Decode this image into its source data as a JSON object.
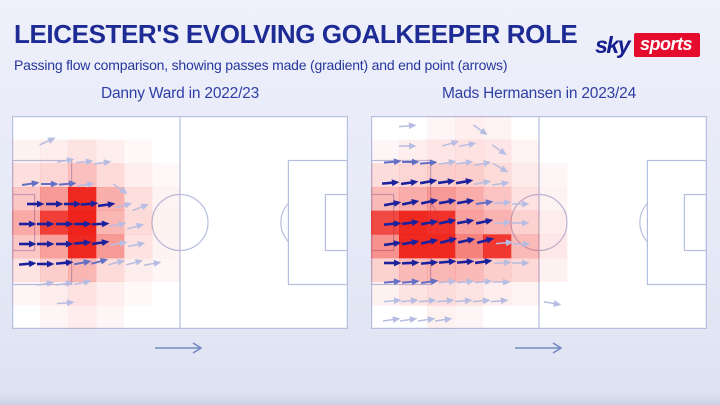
{
  "header": {
    "title": "LEICESTER'S EVOLVING GOALKEEPER ROLE",
    "subtitle": "Passing flow comparison, showing passes made (gradient) and end point (arrows)",
    "brand": {
      "sky": "sky",
      "sports": "sports"
    }
  },
  "colors": {
    "title_navy": "#1e2b94",
    "brand_red": "#e40b2d",
    "brand_navy": "#151e8c",
    "pitch_line": "#b7bfe0",
    "pitch_fill": "#ffffff",
    "heat_red": "238,28,20",
    "arrow_shades": [
      "#b7bde2",
      "#636ec5",
      "#1b219c"
    ],
    "direction_arrow": "#7389bf"
  },
  "chart_data": [
    {
      "type": "heatmap",
      "subtype": "passing-flow-quiver",
      "title": "Danny Ward in 2022/23",
      "direction_of_play": "left-to-right",
      "colormap": "white-to-red (pass volume gradient)",
      "arrow_shade_meaning": {
        "0": "low volume",
        "1": "medium volume",
        "2": "high volume"
      },
      "grid": {
        "cols": 12,
        "rows": 9,
        "values": [
          [
            0,
            0,
            0,
            0,
            0,
            0,
            0,
            0,
            0,
            0,
            0,
            0
          ],
          [
            0.06,
            0.08,
            0.12,
            0.07,
            0.03,
            0,
            0,
            0,
            0,
            0,
            0,
            0
          ],
          [
            0.14,
            0.18,
            0.28,
            0.16,
            0.07,
            0.03,
            0,
            0,
            0,
            0,
            0,
            0
          ],
          [
            0.25,
            0.45,
            0.95,
            0.35,
            0.14,
            0.05,
            0,
            0,
            0,
            0,
            0,
            0
          ],
          [
            0.38,
            0.85,
            0.97,
            0.32,
            0.16,
            0.06,
            0,
            0,
            0,
            0,
            0,
            0
          ],
          [
            0.25,
            0.42,
            0.95,
            0.45,
            0.13,
            0.05,
            0,
            0,
            0,
            0,
            0,
            0
          ],
          [
            0.12,
            0.22,
            0.32,
            0.16,
            0.08,
            0.04,
            0,
            0,
            0,
            0,
            0,
            0
          ],
          [
            0.04,
            0.08,
            0.13,
            0.07,
            0.03,
            0,
            0,
            0,
            0,
            0,
            0,
            0
          ],
          [
            0,
            0.04,
            0.08,
            0.04,
            0,
            0,
            0,
            0,
            0,
            0,
            0,
            0
          ]
        ]
      },
      "arrows": [
        [
          34,
          26,
          -25,
          0
        ],
        [
          52,
          45,
          -10,
          0
        ],
        [
          71,
          46,
          -5,
          0
        ],
        [
          89,
          47,
          -8,
          0
        ],
        [
          17,
          68,
          -8,
          1
        ],
        [
          36,
          68,
          0,
          1
        ],
        [
          54,
          68,
          -5,
          1
        ],
        [
          72,
          69,
          -8,
          0
        ],
        [
          107,
          72,
          35,
          0
        ],
        [
          22,
          88,
          0,
          2
        ],
        [
          41,
          88,
          0,
          2
        ],
        [
          59,
          88,
          0,
          2
        ],
        [
          76,
          88,
          -5,
          2
        ],
        [
          93,
          89,
          -8,
          2
        ],
        [
          110,
          90,
          -15,
          0
        ],
        [
          127,
          92,
          -20,
          0
        ],
        [
          14,
          108,
          0,
          2
        ],
        [
          32,
          108,
          0,
          2
        ],
        [
          51,
          108,
          0,
          2
        ],
        [
          69,
          108,
          0,
          2
        ],
        [
          87,
          108,
          -3,
          2
        ],
        [
          104,
          109,
          -10,
          0
        ],
        [
          122,
          111,
          -15,
          0
        ],
        [
          14,
          128,
          0,
          2
        ],
        [
          32,
          128,
          0,
          2
        ],
        [
          51,
          128,
          0,
          2
        ],
        [
          69,
          127,
          -5,
          2
        ],
        [
          87,
          127,
          -8,
          2
        ],
        [
          105,
          128,
          -10,
          0
        ],
        [
          123,
          129,
          -12,
          0
        ],
        [
          14,
          148,
          -5,
          2
        ],
        [
          32,
          148,
          0,
          2
        ],
        [
          51,
          147,
          -5,
          2
        ],
        [
          69,
          147,
          -10,
          1
        ],
        [
          86,
          146,
          -15,
          1
        ],
        [
          103,
          147,
          -15,
          0
        ],
        [
          121,
          147,
          -15,
          0
        ],
        [
          139,
          148,
          -10,
          0
        ],
        [
          32,
          168,
          -10,
          0
        ],
        [
          51,
          168,
          -8,
          0
        ],
        [
          69,
          167,
          -12,
          0
        ],
        [
          52,
          187,
          -5,
          0
        ]
      ]
    },
    {
      "type": "heatmap",
      "subtype": "passing-flow-quiver",
      "title": "Mads Hermansen in 2023/24",
      "direction_of_play": "left-to-right",
      "colormap": "white-to-red (pass volume gradient)",
      "arrow_shade_meaning": {
        "0": "low volume",
        "1": "medium volume",
        "2": "high volume"
      },
      "grid": {
        "cols": 12,
        "rows": 9,
        "values": [
          [
            0,
            0,
            0.04,
            0.07,
            0.05,
            0,
            0,
            0,
            0,
            0,
            0,
            0
          ],
          [
            0.04,
            0.07,
            0.11,
            0.13,
            0.11,
            0.05,
            0,
            0,
            0,
            0,
            0,
            0
          ],
          [
            0.15,
            0.18,
            0.22,
            0.22,
            0.16,
            0.09,
            0.04,
            0,
            0,
            0,
            0,
            0
          ],
          [
            0.3,
            0.36,
            0.45,
            0.36,
            0.26,
            0.13,
            0.05,
            0,
            0,
            0,
            0,
            0
          ],
          [
            0.8,
            0.95,
            0.9,
            0.42,
            0.34,
            0.2,
            0.08,
            0,
            0,
            0,
            0,
            0
          ],
          [
            0.48,
            0.95,
            0.95,
            0.55,
            0.88,
            0.3,
            0.1,
            0,
            0,
            0,
            0,
            0
          ],
          [
            0.2,
            0.3,
            0.32,
            0.3,
            0.22,
            0.17,
            0.06,
            0,
            0,
            0,
            0,
            0
          ],
          [
            0.06,
            0.12,
            0.15,
            0.12,
            0.08,
            0.05,
            0,
            0,
            0,
            0,
            0,
            0
          ],
          [
            0,
            0,
            0.06,
            0.04,
            0,
            0,
            0,
            0,
            0,
            0,
            0,
            0
          ]
        ]
      },
      "arrows": [
        [
          35,
          10,
          -5,
          0
        ],
        [
          108,
          13,
          35,
          0
        ],
        [
          35,
          30,
          0,
          0
        ],
        [
          78,
          28,
          -15,
          0
        ],
        [
          95,
          29,
          -10,
          0
        ],
        [
          127,
          33,
          35,
          0
        ],
        [
          20,
          46,
          -5,
          1
        ],
        [
          38,
          46,
          0,
          1
        ],
        [
          56,
          47,
          -5,
          1
        ],
        [
          75,
          47,
          -10,
          0
        ],
        [
          92,
          47,
          -8,
          0
        ],
        [
          110,
          48,
          -10,
          0
        ],
        [
          128,
          51,
          30,
          0
        ],
        [
          18,
          67,
          -5,
          2
        ],
        [
          37,
          67,
          -8,
          2
        ],
        [
          56,
          66,
          -10,
          2
        ],
        [
          74,
          66,
          -8,
          2
        ],
        [
          92,
          66,
          -10,
          2
        ],
        [
          110,
          67,
          -10,
          0
        ],
        [
          128,
          68,
          -8,
          0
        ],
        [
          20,
          88,
          -10,
          2
        ],
        [
          38,
          87,
          -12,
          2
        ],
        [
          57,
          86,
          -12,
          2
        ],
        [
          75,
          86,
          -10,
          2
        ],
        [
          93,
          86,
          -10,
          2
        ],
        [
          112,
          87,
          -8,
          1
        ],
        [
          130,
          87,
          -5,
          0
        ],
        [
          148,
          88,
          0,
          0
        ],
        [
          20,
          108,
          -5,
          2
        ],
        [
          38,
          107,
          -8,
          2
        ],
        [
          57,
          107,
          -10,
          2
        ],
        [
          75,
          106,
          -12,
          2
        ],
        [
          93,
          106,
          -10,
          2
        ],
        [
          112,
          106,
          -12,
          2
        ],
        [
          130,
          107,
          -5,
          0
        ],
        [
          148,
          107,
          0,
          0
        ],
        [
          20,
          128,
          -8,
          2
        ],
        [
          38,
          127,
          -10,
          2
        ],
        [
          57,
          126,
          -12,
          2
        ],
        [
          76,
          125,
          -15,
          2
        ],
        [
          94,
          125,
          -12,
          2
        ],
        [
          113,
          125,
          -15,
          2
        ],
        [
          132,
          127,
          -5,
          0
        ],
        [
          149,
          128,
          0,
          0
        ],
        [
          20,
          147,
          0,
          2
        ],
        [
          38,
          147,
          -3,
          2
        ],
        [
          57,
          147,
          -5,
          2
        ],
        [
          75,
          146,
          -5,
          2
        ],
        [
          93,
          146,
          -5,
          2
        ],
        [
          111,
          146,
          -8,
          2
        ],
        [
          130,
          147,
          -5,
          0
        ],
        [
          148,
          147,
          0,
          0
        ],
        [
          20,
          166,
          -5,
          1
        ],
        [
          38,
          166,
          -5,
          1
        ],
        [
          57,
          166,
          -8,
          1
        ],
        [
          75,
          166,
          -5,
          0
        ],
        [
          93,
          166,
          -5,
          0
        ],
        [
          111,
          166,
          -5,
          0
        ],
        [
          129,
          166,
          0,
          0
        ],
        [
          20,
          185,
          -5,
          0
        ],
        [
          37,
          185,
          -5,
          0
        ],
        [
          55,
          185,
          -5,
          0
        ],
        [
          73,
          185,
          -5,
          0
        ],
        [
          91,
          185,
          -5,
          0
        ],
        [
          109,
          185,
          -5,
          0
        ],
        [
          127,
          185,
          -5,
          0
        ],
        [
          180,
          187,
          10,
          0
        ],
        [
          19,
          204,
          -8,
          0
        ],
        [
          36,
          204,
          -8,
          0
        ],
        [
          54,
          204,
          -8,
          0
        ],
        [
          71,
          204,
          -8,
          0
        ]
      ]
    }
  ]
}
